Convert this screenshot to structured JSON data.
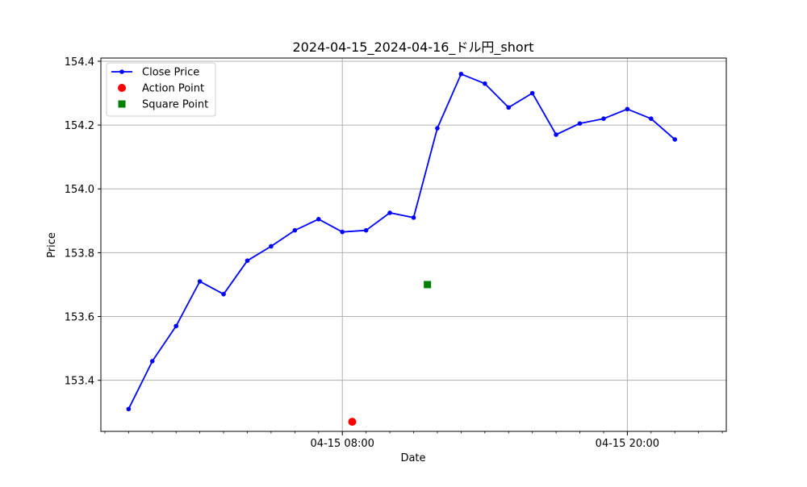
{
  "chart_data": {
    "type": "line",
    "title": "2024-04-15_2024-04-16_ドル円_short",
    "xlabel": "Date",
    "ylabel": "Price",
    "x_unit": "time",
    "xlim": [
      "2024-04-14 21:50",
      "2024-04-16 00:10"
    ],
    "ylim": [
      153.24,
      154.41
    ],
    "y_ticks": [
      153.4,
      153.6,
      153.8,
      154.0,
      154.2,
      154.4
    ],
    "y_tick_labels": [
      "153.4",
      "153.6",
      "153.8",
      "154.0",
      "154.2",
      "154.4"
    ],
    "x_ticks": [
      "2024-04-15 08:00",
      "2024-04-15 20:00"
    ],
    "x_tick_labels": [
      "04-15 08:00",
      "04-15 20:00"
    ],
    "grid": true,
    "legend_position": "upper-left",
    "series": [
      {
        "name": "Close Price",
        "color": "#0000ff",
        "marker": "circle",
        "x": [
          "2024-04-14 23:00",
          "2024-04-15 00:00",
          "2024-04-15 01:00",
          "2024-04-15 02:00",
          "2024-04-15 03:00",
          "2024-04-15 04:00",
          "2024-04-15 05:00",
          "2024-04-15 06:00",
          "2024-04-15 07:00",
          "2024-04-15 08:00",
          "2024-04-15 09:00",
          "2024-04-15 10:00",
          "2024-04-15 11:00",
          "2024-04-15 12:00",
          "2024-04-15 13:00",
          "2024-04-15 14:00",
          "2024-04-15 15:00",
          "2024-04-15 16:00",
          "2024-04-15 17:00",
          "2024-04-15 18:00",
          "2024-04-15 19:00",
          "2024-04-15 20:00",
          "2024-04-15 21:00",
          "2024-04-15 22:00"
        ],
        "values": [
          153.31,
          153.46,
          153.57,
          153.71,
          153.67,
          153.775,
          153.82,
          153.87,
          153.905,
          153.865,
          153.87,
          153.925,
          153.91,
          154.19,
          154.36,
          154.33,
          154.255,
          154.3,
          154.17,
          154.205,
          154.22,
          154.25,
          154.22,
          154.155
        ]
      },
      {
        "name": "Action Point",
        "color": "#ff0000",
        "marker": "circle",
        "x": [
          "2024-04-15 08:25"
        ],
        "values": [
          153.27
        ]
      },
      {
        "name": "Square Point",
        "color": "#008000",
        "marker": "square",
        "x": [
          "2024-04-15 11:35"
        ],
        "values": [
          153.7
        ]
      }
    ]
  }
}
